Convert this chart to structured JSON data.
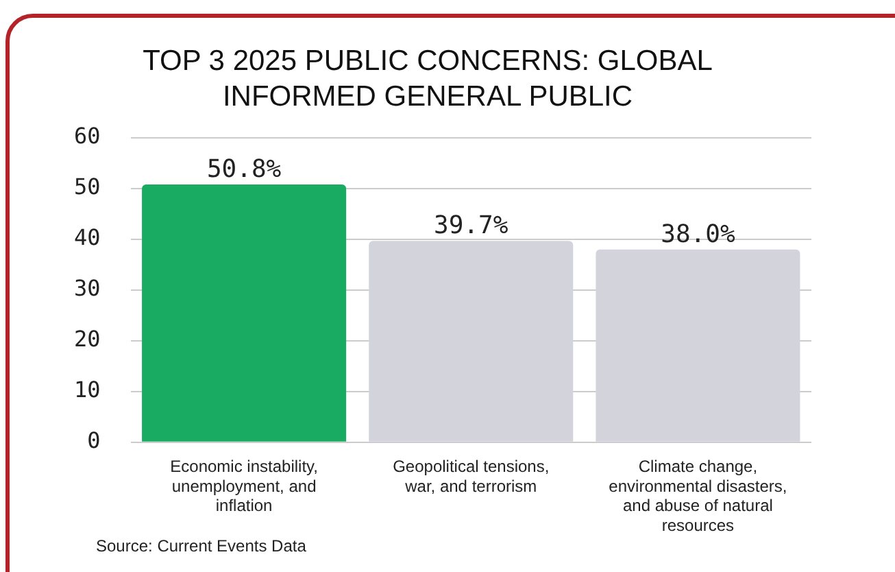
{
  "chart_data": {
    "type": "bar",
    "title": "TOP 3 2025 PUBLIC CONCERNS: GLOBAL INFORMED GENERAL PUBLIC",
    "categories": [
      "Economic instability, unemployment, and inflation",
      "Geopolitical tensions, war, and terrorism",
      "Climate change, environmental disasters, and abuse of natural resources"
    ],
    "values": [
      50.8,
      39.7,
      38.0
    ],
    "colors": [
      "#1aab63",
      "#d3d4db",
      "#d3d4db"
    ],
    "value_labels": [
      "50.8%",
      "39.7%",
      "38.0%"
    ],
    "ylim": [
      0,
      60
    ],
    "yticks": [
      0,
      10,
      20,
      30,
      40,
      50,
      60
    ],
    "grid": "y",
    "legend": false,
    "annotations": [
      "Source: Current Events Data"
    ]
  }
}
